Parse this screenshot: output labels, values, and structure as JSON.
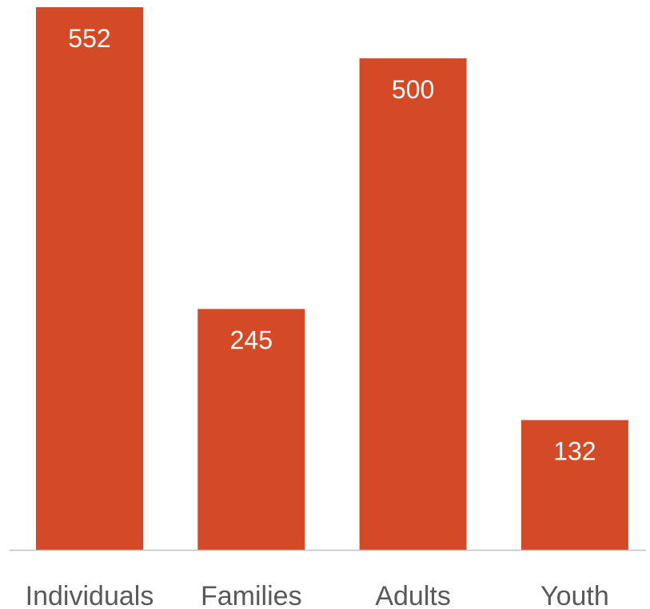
{
  "colors": {
    "bar": "#d44926",
    "axis": "#bfbfbf",
    "value_label": "#ffffff",
    "category_label": "#595959"
  },
  "chart_data": {
    "type": "bar",
    "categories": [
      "Individuals",
      "Families",
      "Adults",
      "Youth"
    ],
    "values": [
      552,
      245,
      500,
      132
    ],
    "title": "",
    "xlabel": "",
    "ylabel": "",
    "ylim": [
      0,
      560
    ],
    "grid": false,
    "legend": "none",
    "data_labels": "inside-top"
  }
}
